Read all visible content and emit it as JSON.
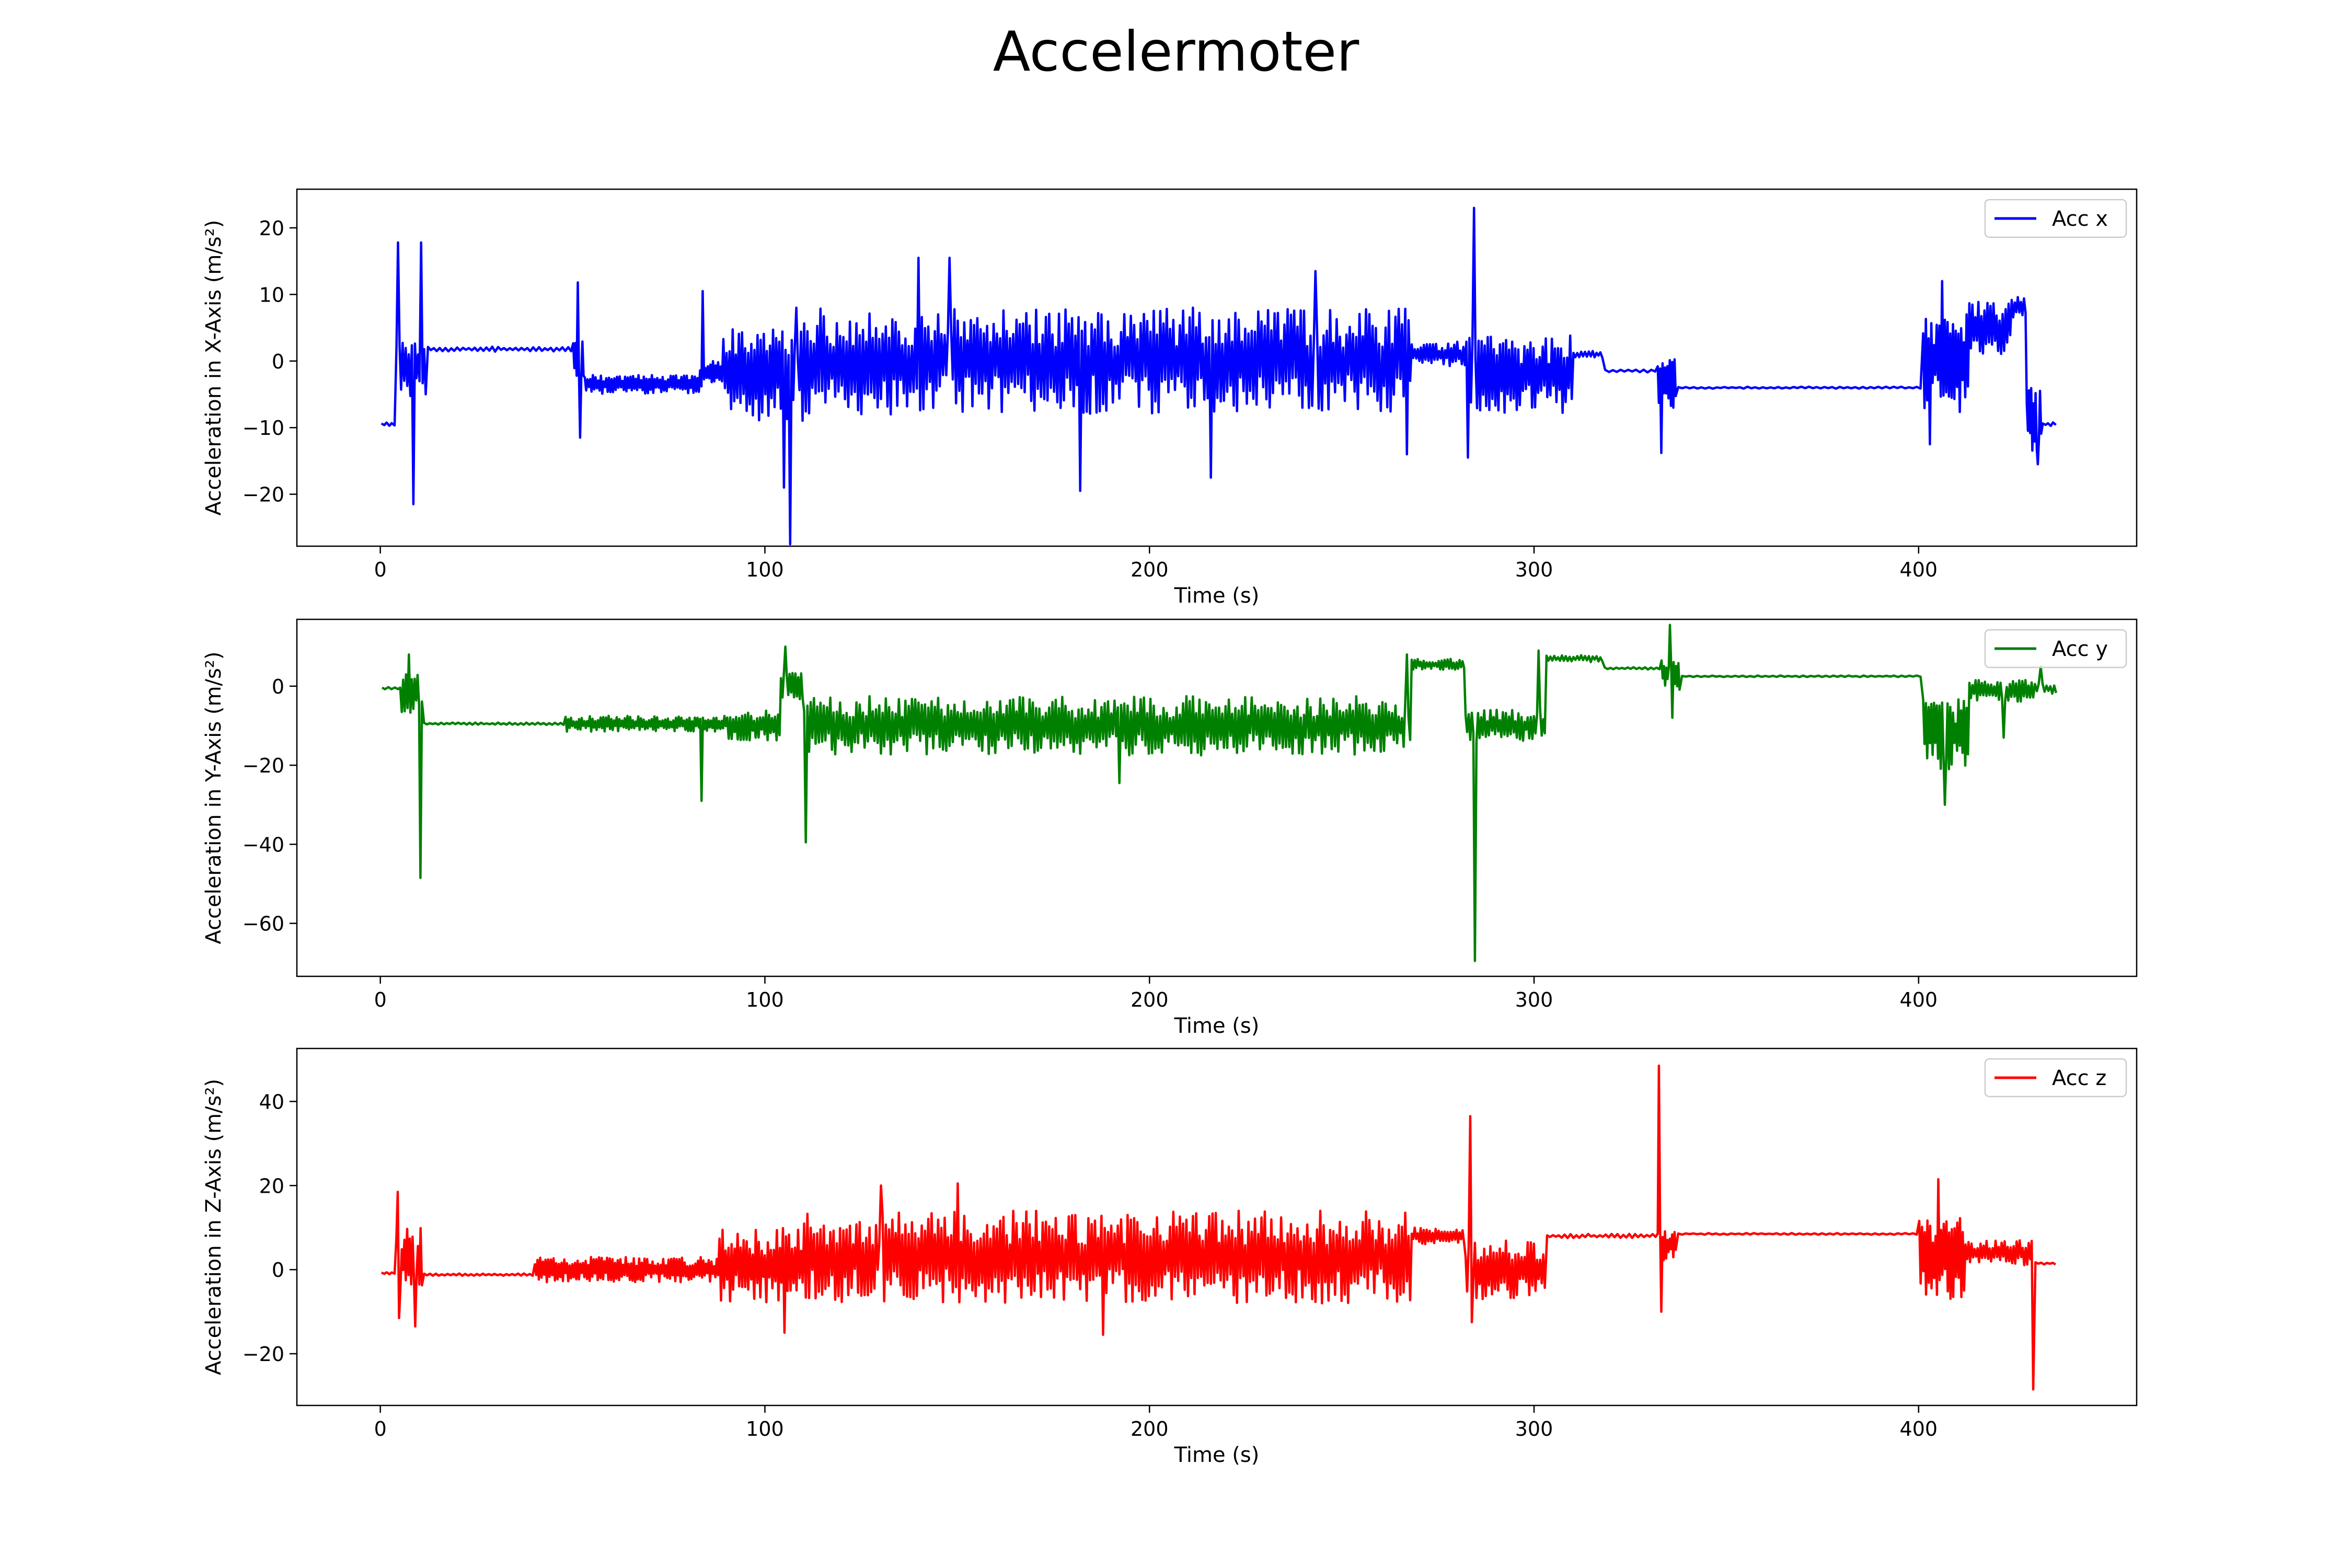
{
  "figure": {
    "title": "Accelermoter"
  },
  "chart_data": [
    {
      "type": "line",
      "xlabel": "Time (s)",
      "ylabel": "Acceleration in X-Axis (m/s²)",
      "xlim": [
        -21.7,
        456.7
      ],
      "ylim": [
        -27.8,
        25.8
      ],
      "xticks": [
        0,
        100,
        200,
        300,
        400
      ],
      "yticks": [
        -20,
        -10,
        0,
        10,
        20
      ],
      "legend": {
        "position": "top-right"
      },
      "series": [
        {
          "name": "Acc x",
          "color": "#0000ff",
          "regions": [
            {
              "t0": 0,
              "t1": 4,
              "base": -9.5,
              "amp": 0.3,
              "cycle": 1.5
            },
            {
              "t0": 4,
              "t1": 12,
              "base": -1,
              "amp": 5,
              "cycle": 0.8
            },
            {
              "t0": 12,
              "t1": 50,
              "base": 1.8,
              "amp": 0.4,
              "cycle": 1.5
            },
            {
              "t0": 50,
              "t1": 53,
              "base": 0,
              "amp": 3,
              "cycle": 0.6
            },
            {
              "t0": 53,
              "t1": 83,
              "base": -3.5,
              "amp": 1.5,
              "cycle": 0.7
            },
            {
              "t0": 83,
              "t1": 89,
              "base": -2,
              "amp": 2,
              "cycle": 0.7
            },
            {
              "t0": 89,
              "t1": 110,
              "base": -2,
              "amp": 7,
              "cycle": 0.8
            },
            {
              "t0": 110,
              "t1": 268,
              "base": 0,
              "amp": 8,
              "cycle": 0.85
            },
            {
              "t0": 268,
              "t1": 283,
              "base": 1,
              "amp": 2,
              "cycle": 0.8
            },
            {
              "t0": 283,
              "t1": 310,
              "base": -2,
              "amp": 6,
              "cycle": 0.8
            },
            {
              "t0": 310,
              "t1": 318,
              "base": 1,
              "amp": 0.5,
              "cycle": 1
            },
            {
              "t0": 318,
              "t1": 332,
              "base": -1.5,
              "amp": 0.2,
              "cycle": 2
            },
            {
              "t0": 332,
              "t1": 337,
              "base": -3,
              "amp": 4,
              "cycle": 0.6
            },
            {
              "t0": 337,
              "t1": 401,
              "base": -4,
              "amp": 0.15,
              "cycle": 2
            },
            {
              "t0": 401,
              "t1": 413,
              "base": 0,
              "amp": 8,
              "cycle": 0.7
            },
            {
              "t0": 413,
              "t1": 424,
              "base": 5,
              "amp": 4,
              "cycle": 0.8
            },
            {
              "t0": 424,
              "t1": 428,
              "base": 8,
              "amp": 2,
              "cycle": 0.8
            },
            {
              "t0": 428,
              "t1": 432,
              "base": -9,
              "amp": 5,
              "cycle": 0.6
            },
            {
              "t0": 432,
              "t1": 436,
              "base": -9.5,
              "amp": 0.3,
              "cycle": 1.5
            }
          ],
          "spikes": [
            {
              "t": 4.5,
              "v": 17.8
            },
            {
              "t": 8.5,
              "v": -21.5
            },
            {
              "t": 10.5,
              "v": 17.8
            },
            {
              "t": 51.5,
              "v": 11.8
            },
            {
              "t": 52,
              "v": -11.5
            },
            {
              "t": 84,
              "v": 10.5
            },
            {
              "t": 105,
              "v": -19
            },
            {
              "t": 106.5,
              "v": -27.5
            },
            {
              "t": 108,
              "v": 8
            },
            {
              "t": 140,
              "v": 15.5
            },
            {
              "t": 148,
              "v": 15.5
            },
            {
              "t": 182,
              "v": -19.5
            },
            {
              "t": 216,
              "v": -17.5
            },
            {
              "t": 243,
              "v": 13.5
            },
            {
              "t": 267,
              "v": -14
            },
            {
              "t": 283,
              "v": -14.5
            },
            {
              "t": 284.5,
              "v": 23
            },
            {
              "t": 333,
              "v": -13.8
            },
            {
              "t": 403,
              "v": -12.5
            },
            {
              "t": 406,
              "v": 12
            },
            {
              "t": 431,
              "v": -15.5
            }
          ]
        }
      ]
    },
    {
      "type": "line",
      "xlabel": "Time (s)",
      "ylabel": "Acceleration in Y-Axis (m/s²)",
      "xlim": [
        -21.7,
        456.7
      ],
      "ylim": [
        -73.4,
        16.9
      ],
      "xticks": [
        0,
        100,
        200,
        300,
        400
      ],
      "yticks": [
        -60,
        -40,
        -20,
        0
      ],
      "legend": {
        "position": "top-right"
      },
      "series": [
        {
          "name": "Acc y",
          "color": "#008000",
          "regions": [
            {
              "t0": 0,
              "t1": 5,
              "base": -0.5,
              "amp": 0.3,
              "cycle": 1.5
            },
            {
              "t0": 5,
              "t1": 11,
              "base": -2,
              "amp": 5,
              "cycle": 0.8
            },
            {
              "t0": 11,
              "t1": 48,
              "base": -9.5,
              "amp": 0.3,
              "cycle": 1.5
            },
            {
              "t0": 48,
              "t1": 90,
              "base": -9.5,
              "amp": 2,
              "cycle": 0.7
            },
            {
              "t0": 90,
              "t1": 104,
              "base": -10,
              "amp": 4,
              "cycle": 0.8
            },
            {
              "t0": 104,
              "t1": 110,
              "base": 0,
              "amp": 4,
              "cycle": 0.8
            },
            {
              "t0": 110,
              "t1": 268,
              "base": -10,
              "amp": 7.5,
              "cycle": 0.85
            },
            {
              "t0": 268,
              "t1": 282,
              "base": 5.5,
              "amp": 1.5,
              "cycle": 0.8
            },
            {
              "t0": 282,
              "t1": 303,
              "base": -10,
              "amp": 4,
              "cycle": 0.8
            },
            {
              "t0": 303,
              "t1": 318,
              "base": 7,
              "amp": 1,
              "cycle": 1
            },
            {
              "t0": 318,
              "t1": 333,
              "base": 4.5,
              "amp": 0.3,
              "cycle": 1.5
            },
            {
              "t0": 333,
              "t1": 338,
              "base": 3,
              "amp": 4,
              "cycle": 0.6
            },
            {
              "t0": 338,
              "t1": 401,
              "base": 2.5,
              "amp": 0.2,
              "cycle": 2
            },
            {
              "t0": 401,
              "t1": 413,
              "base": -12,
              "amp": 9,
              "cycle": 0.7
            },
            {
              "t0": 413,
              "t1": 430,
              "base": -1,
              "amp": 3,
              "cycle": 0.8
            },
            {
              "t0": 430,
              "t1": 436,
              "base": -0.5,
              "amp": 1.5,
              "cycle": 1
            }
          ],
          "spikes": [
            {
              "t": 7.5,
              "v": 8
            },
            {
              "t": 10.5,
              "v": -48.5
            },
            {
              "t": 83.5,
              "v": -29
            },
            {
              "t": 105.5,
              "v": 10
            },
            {
              "t": 110.5,
              "v": -39.5
            },
            {
              "t": 192,
              "v": -24.5
            },
            {
              "t": 267,
              "v": 8
            },
            {
              "t": 284.5,
              "v": -69.5
            },
            {
              "t": 301,
              "v": 9
            },
            {
              "t": 335.5,
              "v": 15.5
            },
            {
              "t": 336,
              "v": -8
            },
            {
              "t": 407,
              "v": -30
            },
            {
              "t": 422,
              "v": -13
            },
            {
              "t": 432,
              "v": 5
            }
          ]
        }
      ]
    },
    {
      "type": "line",
      "xlabel": "Time (s)",
      "ylabel": "Acceleration in Z-Axis (m/s²)",
      "xlim": [
        -21.7,
        456.7
      ],
      "ylim": [
        -32.3,
        52.6
      ],
      "xticks": [
        0,
        100,
        200,
        300,
        400
      ],
      "yticks": [
        -20,
        0,
        20,
        40
      ],
      "legend": {
        "position": "top-right"
      },
      "series": [
        {
          "name": "Acc z",
          "color": "#ff0000",
          "regions": [
            {
              "t0": 0,
              "t1": 4,
              "base": -0.8,
              "amp": 0.3,
              "cycle": 1.5
            },
            {
              "t0": 4,
              "t1": 11,
              "base": 2,
              "amp": 8,
              "cycle": 0.7
            },
            {
              "t0": 11,
              "t1": 40,
              "base": -1.2,
              "amp": 0.3,
              "cycle": 1.5
            },
            {
              "t0": 40,
              "t1": 88,
              "base": 0,
              "amp": 3,
              "cycle": 0.7
            },
            {
              "t0": 88,
              "t1": 110,
              "base": 1,
              "amp": 9,
              "cycle": 0.8
            },
            {
              "t0": 110,
              "t1": 268,
              "base": 3,
              "amp": 11,
              "cycle": 0.85
            },
            {
              "t0": 268,
              "t1": 282,
              "base": 8,
              "amp": 2,
              "cycle": 0.8
            },
            {
              "t0": 282,
              "t1": 303,
              "base": 0,
              "amp": 7,
              "cycle": 0.8
            },
            {
              "t0": 303,
              "t1": 332,
              "base": 8,
              "amp": 0.5,
              "cycle": 1.5
            },
            {
              "t0": 332,
              "t1": 337,
              "base": 6,
              "amp": 4,
              "cycle": 0.6
            },
            {
              "t0": 337,
              "t1": 400,
              "base": 8.5,
              "amp": 0.2,
              "cycle": 2
            },
            {
              "t0": 400,
              "t1": 412,
              "base": 3,
              "amp": 10,
              "cycle": 0.7
            },
            {
              "t0": 412,
              "t1": 430,
              "base": 4,
              "amp": 3,
              "cycle": 0.8
            },
            {
              "t0": 430,
              "t1": 436,
              "base": 1.5,
              "amp": 0.3,
              "cycle": 1.5
            }
          ],
          "spikes": [
            {
              "t": 4.5,
              "v": 18.5
            },
            {
              "t": 4.8,
              "v": -11.5
            },
            {
              "t": 9,
              "v": -13.5
            },
            {
              "t": 105,
              "v": -15
            },
            {
              "t": 130,
              "v": 20
            },
            {
              "t": 150,
              "v": 20.5
            },
            {
              "t": 188,
              "v": -15.5
            },
            {
              "t": 283.5,
              "v": 36.5
            },
            {
              "t": 284,
              "v": -12.5
            },
            {
              "t": 332.5,
              "v": 48.5
            },
            {
              "t": 333,
              "v": -10
            },
            {
              "t": 405,
              "v": 21.5
            },
            {
              "t": 430,
              "v": -28.5
            }
          ]
        }
      ]
    }
  ]
}
